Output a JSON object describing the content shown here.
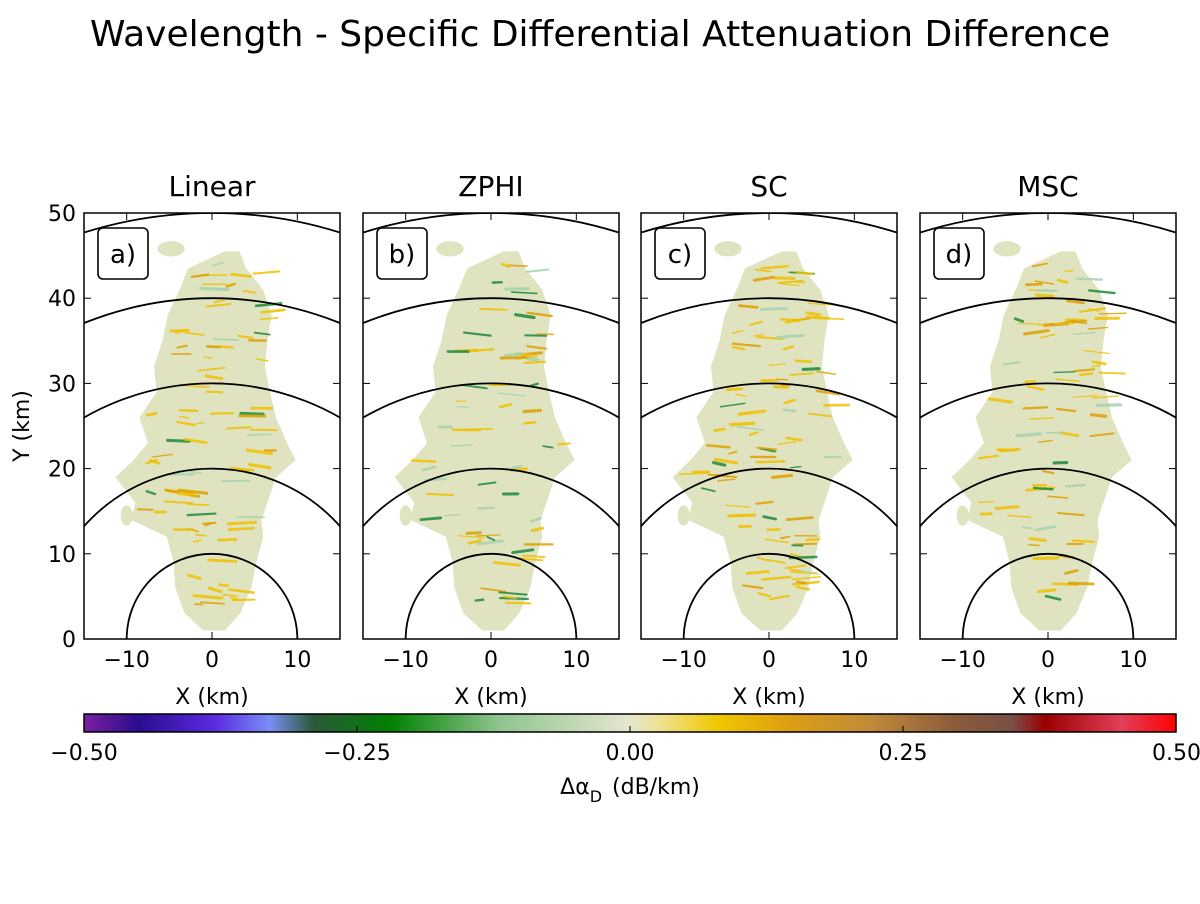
{
  "figure": {
    "title": "Wavelength - Specific Differential Attenuation Difference"
  },
  "chart_data": {
    "type": "heatmap",
    "shared_axes": {
      "xlabel": "X (km)",
      "ylabel": "Y (km)",
      "xlim": [
        -15,
        15
      ],
      "ylim": [
        0,
        50
      ],
      "xticks": [
        -10,
        0,
        10
      ],
      "yticks": [
        0,
        10,
        20,
        30,
        40,
        50
      ],
      "range_rings_km": [
        10,
        20,
        30,
        40,
        50
      ],
      "grid": false
    },
    "panels": [
      {
        "title": "Linear",
        "label": "a)"
      },
      {
        "title": "ZPHI",
        "label": "b)"
      },
      {
        "title": "SC",
        "label": "c)"
      },
      {
        "title": "MSC",
        "label": "d)"
      }
    ],
    "colorbar": {
      "label": "Δα",
      "label_sub": "D",
      "label_unit": "(dB/km)",
      "range": [
        -0.5,
        0.5
      ],
      "ticks": [
        -0.5,
        -0.25,
        0.0,
        0.25,
        0.5
      ],
      "tick_labels": [
        "−0.50",
        "−0.25",
        "0.00",
        "0.25",
        "0.50"
      ],
      "stops": [
        {
          "v": -0.5,
          "color": "#7a1fa0"
        },
        {
          "v": -0.45,
          "color": "#2a0d8f"
        },
        {
          "v": -0.38,
          "color": "#5a2be0"
        },
        {
          "v": -0.33,
          "color": "#7b8ef5"
        },
        {
          "v": -0.29,
          "color": "#2a5a3a"
        },
        {
          "v": -0.22,
          "color": "#008000"
        },
        {
          "v": -0.12,
          "color": "#8fc48f"
        },
        {
          "v": 0.0,
          "color": "#e6e6d0"
        },
        {
          "v": 0.03,
          "color": "#f0e08a"
        },
        {
          "v": 0.08,
          "color": "#f0c800"
        },
        {
          "v": 0.14,
          "color": "#e0a010"
        },
        {
          "v": 0.22,
          "color": "#c08a3a"
        },
        {
          "v": 0.3,
          "color": "#8a5a3a"
        },
        {
          "v": 0.35,
          "color": "#7a5048"
        },
        {
          "v": 0.38,
          "color": "#9a0000"
        },
        {
          "v": 0.45,
          "color": "#e0405a"
        },
        {
          "v": 0.5,
          "color": "#ff0000"
        }
      ]
    },
    "field_colors": {
      "base": "#dfe3c0",
      "positive": "#f0c000",
      "strong_positive": "#e0a000",
      "negative": "#1e8a3c",
      "weak_negative": "#a8d2b0"
    }
  }
}
